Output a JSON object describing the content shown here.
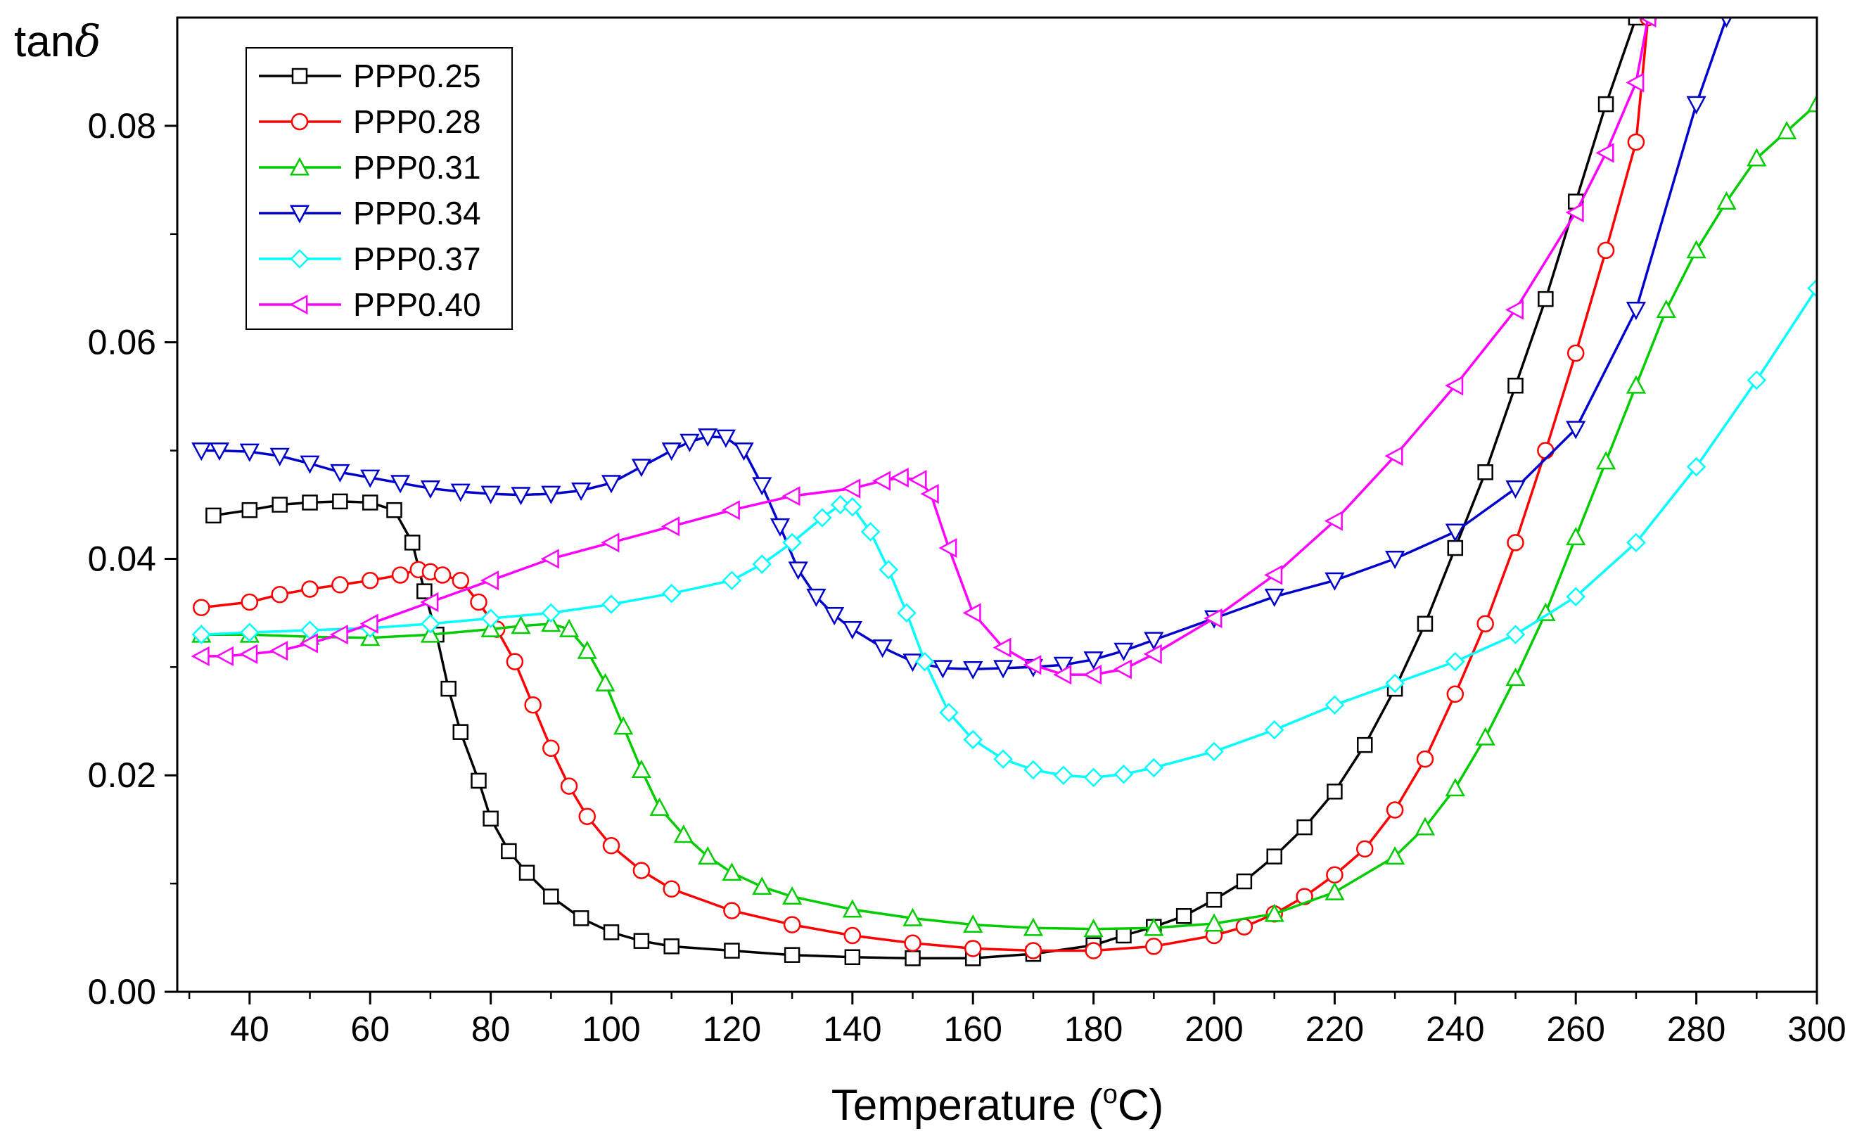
{
  "chart_data": {
    "type": "line",
    "title": "",
    "ylabel_prefix": "tan",
    "ylabel_symbol": "δ",
    "xlabel_prefix": "Temperature (",
    "xlabel_degree": "o",
    "xlabel_unit": "C)",
    "xlim": [
      28,
      300
    ],
    "ylim": [
      0,
      0.09
    ],
    "x_ticks": [
      40,
      60,
      80,
      100,
      120,
      140,
      160,
      180,
      200,
      220,
      240,
      260,
      280,
      300
    ],
    "x_tick_labels": [
      "40",
      "60",
      "80",
      "100",
      "120",
      "140",
      "160",
      "180",
      "200",
      "220",
      "240",
      "260",
      "280",
      "300"
    ],
    "y_ticks": [
      0,
      0.02,
      0.04,
      0.06,
      0.08
    ],
    "y_tick_labels": [
      "0.00",
      "0.02",
      "0.04",
      "0.06",
      "0.08"
    ],
    "grid": false,
    "legend_position": "top-left",
    "series": [
      {
        "name": "PPP0.25",
        "color": "#000000",
        "marker": "square",
        "x": [
          34,
          40,
          45,
          50,
          55,
          60,
          64,
          67,
          69,
          71,
          73,
          75,
          78,
          80,
          83,
          86,
          90,
          95,
          100,
          105,
          110,
          120,
          130,
          140,
          150,
          160,
          170,
          180,
          185,
          190,
          195,
          200,
          205,
          210,
          215,
          220,
          225,
          230,
          235,
          240,
          245,
          250,
          255,
          260,
          265,
          270
        ],
        "y": [
          0.044,
          0.0445,
          0.045,
          0.0452,
          0.0453,
          0.0452,
          0.0445,
          0.0415,
          0.037,
          0.033,
          0.028,
          0.024,
          0.0195,
          0.016,
          0.013,
          0.011,
          0.0088,
          0.0068,
          0.0055,
          0.0047,
          0.0042,
          0.0038,
          0.0034,
          0.0032,
          0.0031,
          0.0031,
          0.0035,
          0.0043,
          0.0052,
          0.006,
          0.007,
          0.0085,
          0.0102,
          0.0125,
          0.0152,
          0.0185,
          0.0228,
          0.028,
          0.034,
          0.041,
          0.048,
          0.056,
          0.064,
          0.073,
          0.082,
          0.09
        ]
      },
      {
        "name": "PPP0.28",
        "color": "#ff0000",
        "marker": "circle",
        "x": [
          32,
          40,
          45,
          50,
          55,
          60,
          65,
          68,
          70,
          72,
          75,
          78,
          81,
          84,
          87,
          90,
          93,
          96,
          100,
          105,
          110,
          120,
          130,
          140,
          150,
          160,
          170,
          180,
          190,
          200,
          205,
          210,
          215,
          220,
          225,
          230,
          235,
          240,
          245,
          250,
          255,
          260,
          265,
          270,
          272
        ],
        "y": [
          0.0355,
          0.036,
          0.0367,
          0.0372,
          0.0376,
          0.038,
          0.0385,
          0.039,
          0.0388,
          0.0385,
          0.038,
          0.036,
          0.0335,
          0.0305,
          0.0265,
          0.0225,
          0.019,
          0.0162,
          0.0135,
          0.0112,
          0.0095,
          0.0075,
          0.0062,
          0.0052,
          0.0045,
          0.004,
          0.0038,
          0.0038,
          0.0042,
          0.0052,
          0.006,
          0.0072,
          0.0088,
          0.0108,
          0.0132,
          0.0168,
          0.0215,
          0.0275,
          0.034,
          0.0415,
          0.05,
          0.059,
          0.0685,
          0.0785,
          0.09
        ]
      },
      {
        "name": "PPP0.31",
        "color": "#00cc00",
        "marker": "triangle-up",
        "x": [
          32,
          40,
          50,
          60,
          70,
          80,
          85,
          90,
          93,
          96,
          99,
          102,
          105,
          108,
          112,
          116,
          120,
          125,
          130,
          140,
          150,
          160,
          170,
          180,
          190,
          200,
          210,
          220,
          230,
          235,
          240,
          245,
          250,
          255,
          260,
          265,
          270,
          275,
          280,
          285,
          290,
          295,
          300
        ],
        "y": [
          0.033,
          0.033,
          0.0328,
          0.0327,
          0.033,
          0.0335,
          0.0338,
          0.034,
          0.0335,
          0.0315,
          0.0285,
          0.0245,
          0.0205,
          0.017,
          0.0145,
          0.0125,
          0.011,
          0.0097,
          0.0088,
          0.0076,
          0.0068,
          0.0062,
          0.0059,
          0.0058,
          0.0059,
          0.0063,
          0.0072,
          0.0092,
          0.0125,
          0.0152,
          0.0188,
          0.0235,
          0.029,
          0.035,
          0.042,
          0.049,
          0.056,
          0.063,
          0.0685,
          0.073,
          0.077,
          0.0795,
          0.082
        ]
      },
      {
        "name": "PPP0.34",
        "color": "#0000cc",
        "marker": "triangle-down",
        "x": [
          32,
          35,
          40,
          45,
          50,
          55,
          60,
          65,
          70,
          75,
          80,
          85,
          90,
          95,
          100,
          105,
          110,
          113,
          116,
          119,
          122,
          125,
          128,
          131,
          134,
          137,
          140,
          145,
          150,
          155,
          160,
          165,
          170,
          175,
          180,
          185,
          190,
          200,
          210,
          220,
          230,
          240,
          250,
          260,
          270,
          280,
          285
        ],
        "y": [
          0.05,
          0.05,
          0.0499,
          0.0495,
          0.0488,
          0.048,
          0.0475,
          0.047,
          0.0465,
          0.0462,
          0.046,
          0.0459,
          0.046,
          0.0463,
          0.047,
          0.0485,
          0.05,
          0.0508,
          0.0513,
          0.0512,
          0.05,
          0.0468,
          0.043,
          0.039,
          0.0365,
          0.0348,
          0.0335,
          0.0318,
          0.0305,
          0.0299,
          0.0298,
          0.0299,
          0.03,
          0.0302,
          0.0307,
          0.0315,
          0.0325,
          0.0345,
          0.0365,
          0.038,
          0.04,
          0.0425,
          0.0465,
          0.052,
          0.063,
          0.082,
          0.09
        ]
      },
      {
        "name": "PPP0.37",
        "color": "#00ffff",
        "marker": "diamond",
        "x": [
          32,
          40,
          50,
          60,
          70,
          80,
          90,
          100,
          110,
          120,
          125,
          130,
          135,
          138,
          140,
          143,
          146,
          149,
          152,
          156,
          160,
          165,
          170,
          175,
          180,
          185,
          190,
          200,
          210,
          220,
          230,
          240,
          250,
          260,
          270,
          280,
          290,
          300
        ],
        "y": [
          0.033,
          0.0332,
          0.0334,
          0.0336,
          0.034,
          0.0345,
          0.035,
          0.0358,
          0.0368,
          0.038,
          0.0395,
          0.0415,
          0.0438,
          0.045,
          0.0448,
          0.0425,
          0.039,
          0.035,
          0.0305,
          0.0258,
          0.0233,
          0.0215,
          0.0205,
          0.02,
          0.0198,
          0.0201,
          0.0207,
          0.0222,
          0.0242,
          0.0265,
          0.0285,
          0.0305,
          0.033,
          0.0365,
          0.0415,
          0.0485,
          0.0565,
          0.065
        ]
      },
      {
        "name": "PPP0.40",
        "color": "#ff00ff",
        "marker": "triangle-left",
        "x": [
          32,
          36,
          40,
          45,
          50,
          55,
          60,
          70,
          80,
          90,
          100,
          110,
          120,
          130,
          140,
          145,
          148,
          151,
          153,
          156,
          160,
          165,
          170,
          175,
          180,
          185,
          190,
          200,
          210,
          220,
          230,
          240,
          250,
          260,
          265,
          270,
          272
        ],
        "y": [
          0.031,
          0.031,
          0.0312,
          0.0315,
          0.0322,
          0.033,
          0.034,
          0.036,
          0.038,
          0.04,
          0.0415,
          0.043,
          0.0445,
          0.0458,
          0.0465,
          0.0472,
          0.0475,
          0.0473,
          0.046,
          0.041,
          0.035,
          0.0318,
          0.0302,
          0.0293,
          0.0293,
          0.0298,
          0.0312,
          0.0345,
          0.0385,
          0.0435,
          0.0495,
          0.056,
          0.063,
          0.072,
          0.0775,
          0.084,
          0.09
        ]
      }
    ]
  }
}
